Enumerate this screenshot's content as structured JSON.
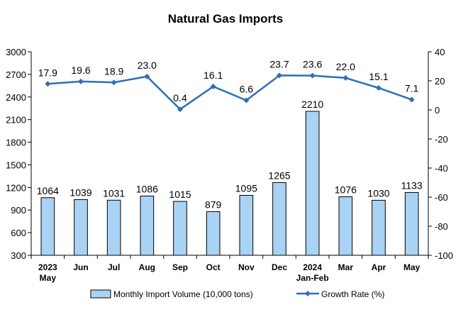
{
  "chart_data": {
    "type": "bar",
    "title": "Natural Gas Imports",
    "categories": [
      [
        "2023",
        "May"
      ],
      [
        "Jun"
      ],
      [
        "Jul"
      ],
      [
        "Aug"
      ],
      [
        "Sep"
      ],
      [
        "Oct"
      ],
      [
        "Nov"
      ],
      [
        "Dec"
      ],
      [
        "2024",
        "Jan-Feb"
      ],
      [
        "Mar"
      ],
      [
        "Apr"
      ],
      [
        "May"
      ]
    ],
    "series": [
      {
        "name": "Monthly Import Volume (10,000 tons)",
        "type": "bar",
        "axis": "left",
        "color": "#a9d3f5",
        "values": [
          1064,
          1039,
          1031,
          1086,
          1015,
          879,
          1095,
          1265,
          2210,
          1076,
          1030,
          1133
        ],
        "labels": [
          "1064",
          "1039",
          "1031",
          "1086",
          "1015",
          "879",
          "1095",
          "1265",
          "2210",
          "1076",
          "1030",
          "1133"
        ]
      },
      {
        "name": "Growth Rate (%)",
        "type": "line",
        "axis": "right",
        "color": "#2e6fb5",
        "values": [
          17.9,
          19.6,
          18.9,
          23.0,
          0.4,
          16.1,
          6.6,
          23.7,
          23.6,
          22.0,
          15.1,
          7.1
        ],
        "labels": [
          "17.9",
          "19.6",
          "18.9",
          "23.0",
          "0.4",
          "16.1",
          "6.6",
          "23.7",
          "23.6",
          "22.0",
          "15.1",
          "7.1"
        ]
      }
    ],
    "left_axis": {
      "range": [
        300,
        3000
      ],
      "ticks": [
        "300",
        "600",
        "900",
        "1200",
        "1500",
        "1800",
        "2100",
        "2400",
        "2700",
        "3000"
      ],
      "tick_values": [
        300,
        600,
        900,
        1200,
        1500,
        1800,
        2100,
        2400,
        2700,
        3000
      ]
    },
    "right_axis": {
      "range": [
        -100,
        40
      ],
      "ticks": [
        "-100",
        "-80",
        "-60",
        "-40",
        "-20",
        "0",
        "20",
        "40"
      ],
      "tick_values": [
        -100,
        -80,
        -60,
        -40,
        -20,
        0,
        20,
        40
      ]
    },
    "grid": false,
    "legend_position": "bottom"
  }
}
